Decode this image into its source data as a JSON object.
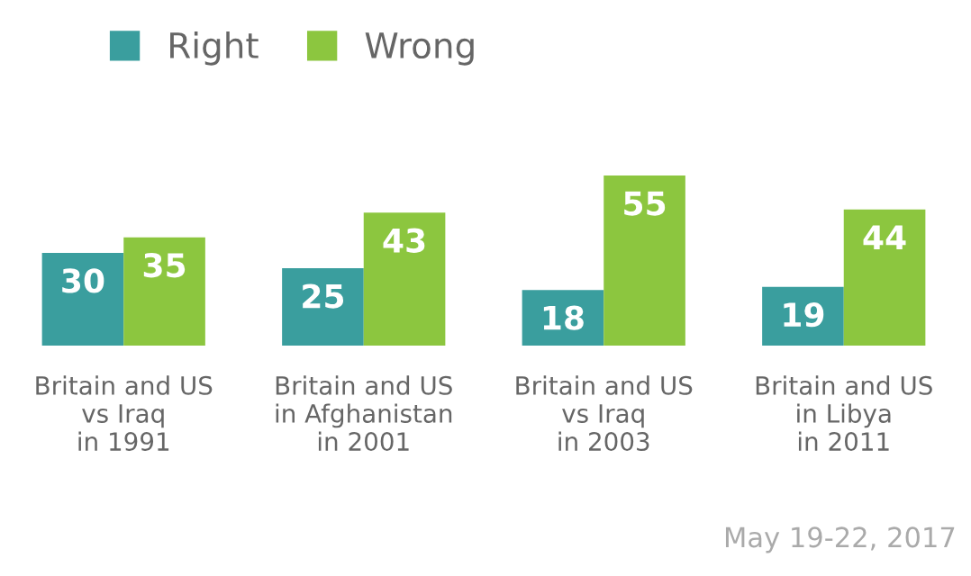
{
  "chart_data": {
    "type": "bar",
    "categories": [
      "Britain and US\nvs Iraq\nin 1991",
      "Britain and US\nin Afghanistan\nin 2001",
      "Britain and US\nvs Iraq\nin 2003",
      "Britain and US\nin Libya\nin 2011"
    ],
    "series": [
      {
        "name": "Right",
        "color": "#3a9e9e",
        "values": [
          30,
          25,
          18,
          19
        ]
      },
      {
        "name": "Wrong",
        "color": "#8cc63f",
        "values": [
          35,
          43,
          55,
          44
        ]
      }
    ],
    "data_labels": true,
    "legend": "top left",
    "grid": false,
    "annotations": [
      "May 19-22, 2017"
    ]
  }
}
